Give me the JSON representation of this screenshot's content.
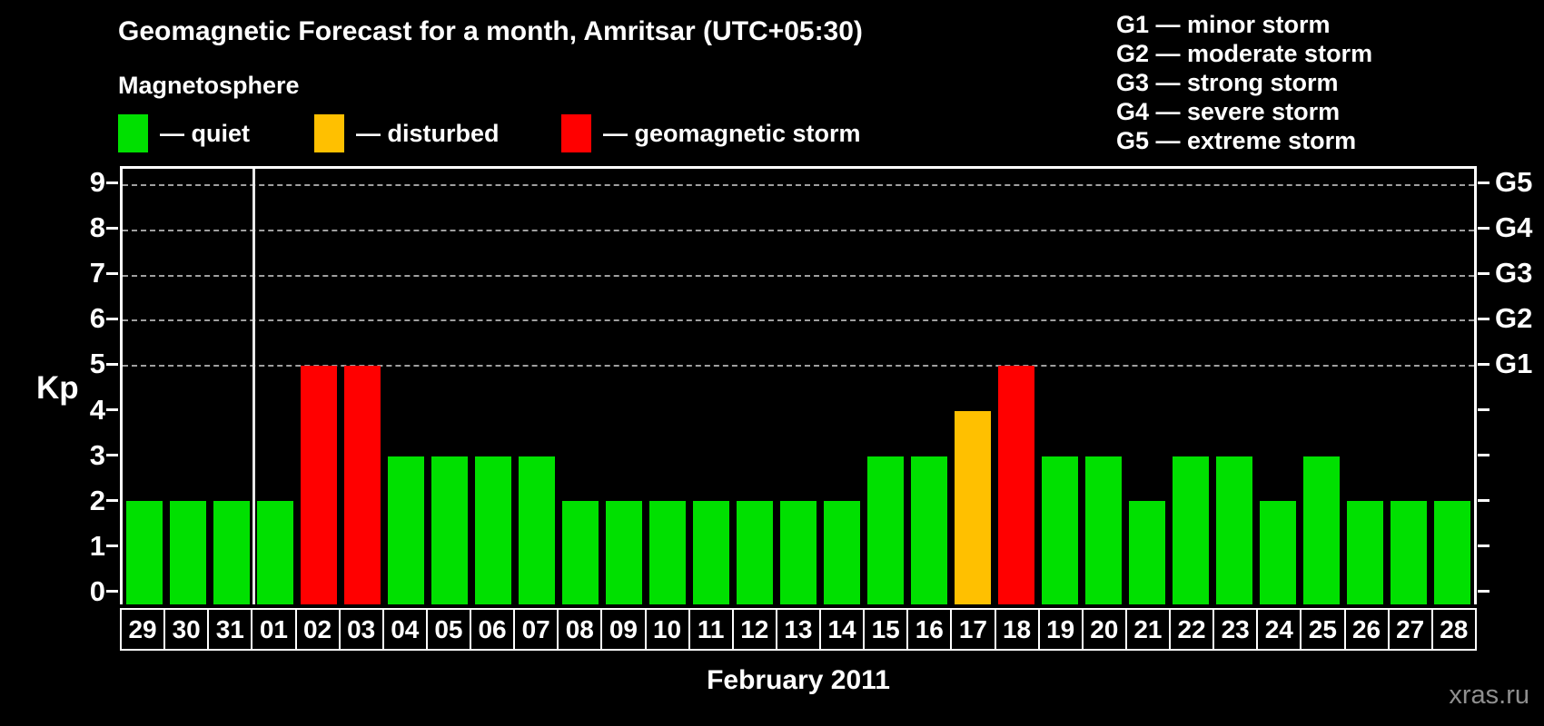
{
  "header": {
    "title": "Geomagnetic Forecast for a month, Amritsar (UTC+05:30)",
    "subtitle": "Magnetosphere"
  },
  "legend": {
    "items": [
      {
        "name": "quiet",
        "label": "— quiet",
        "color": "#00e000"
      },
      {
        "name": "disturbed",
        "label": "— disturbed",
        "color": "#ffc000"
      },
      {
        "name": "storm",
        "label": "— geomagnetic storm",
        "color": "#ff0000"
      }
    ]
  },
  "g_legend": {
    "items": [
      "G1 — minor storm",
      "G2 — moderate storm",
      "G3 — strong storm",
      "G4 — severe storm",
      "G5 — extreme storm"
    ]
  },
  "watermark": "xras.ru",
  "chart_data": {
    "type": "bar",
    "title": "Geomagnetic Forecast for a month, Amritsar (UTC+05:30)",
    "xlabel": "February 2011",
    "ylabel": "Kp",
    "ylim": [
      0,
      9
    ],
    "yticks": [
      0,
      1,
      2,
      3,
      4,
      5,
      6,
      7,
      8,
      9
    ],
    "gridlines_at": [
      5,
      6,
      7,
      8,
      9
    ],
    "grid": "dashed horizontal at Kp 5-9 only",
    "legend_position": "top",
    "right_axis": [
      {
        "kp": 5,
        "label": "G1"
      },
      {
        "kp": 6,
        "label": "G2"
      },
      {
        "kp": 7,
        "label": "G3"
      },
      {
        "kp": 8,
        "label": "G4"
      },
      {
        "kp": 9,
        "label": "G5"
      }
    ],
    "month_separator_after_index": 2,
    "categories": [
      "29",
      "30",
      "31",
      "01",
      "02",
      "03",
      "04",
      "05",
      "06",
      "07",
      "08",
      "09",
      "10",
      "11",
      "12",
      "13",
      "14",
      "15",
      "16",
      "17",
      "18",
      "19",
      "20",
      "21",
      "22",
      "23",
      "24",
      "25",
      "26",
      "27",
      "28"
    ],
    "values": [
      2,
      2,
      2,
      2,
      5,
      5,
      3,
      3,
      3,
      3,
      2,
      2,
      2,
      2,
      2,
      2,
      2,
      3,
      3,
      4,
      5,
      3,
      3,
      2,
      3,
      3,
      2,
      3,
      2,
      2,
      2
    ],
    "states": [
      "quiet",
      "quiet",
      "quiet",
      "quiet",
      "storm",
      "storm",
      "quiet",
      "quiet",
      "quiet",
      "quiet",
      "quiet",
      "quiet",
      "quiet",
      "quiet",
      "quiet",
      "quiet",
      "quiet",
      "quiet",
      "quiet",
      "disturbed",
      "storm",
      "quiet",
      "quiet",
      "quiet",
      "quiet",
      "quiet",
      "quiet",
      "quiet",
      "quiet",
      "quiet",
      "quiet"
    ],
    "colors": {
      "quiet": "#00e000",
      "disturbed": "#ffc000",
      "storm": "#ff0000"
    }
  }
}
